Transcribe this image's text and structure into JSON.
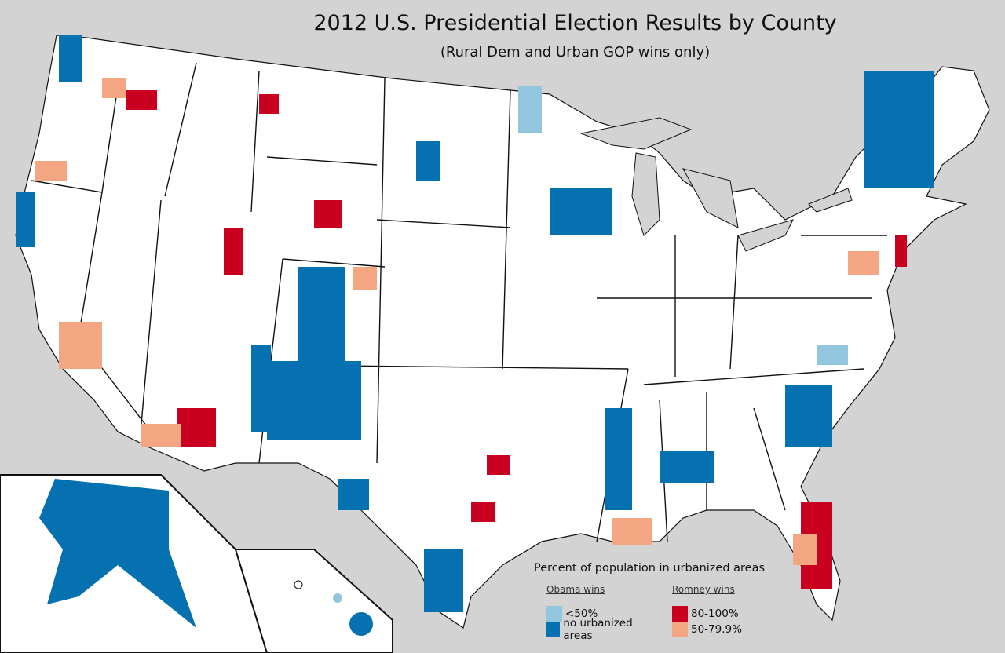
{
  "title": "2012 U.S. Presidential Election Results by County",
  "subtitle": "(Rural Dem and Urban GOP wins only)",
  "legend": {
    "heading": "Percent of population in urbanized areas",
    "obama": {
      "label": "Obama wins",
      "items": [
        {
          "label": "<50%",
          "color": "#92c5de"
        },
        {
          "label": "no urbanized areas",
          "color": "#0571b0"
        }
      ]
    },
    "romney": {
      "label": "Romney wins",
      "items": [
        {
          "label": "80-100%",
          "color": "#ca0020"
        },
        {
          "label": "50-79.9%",
          "color": "#f4a582"
        }
      ]
    }
  }
}
